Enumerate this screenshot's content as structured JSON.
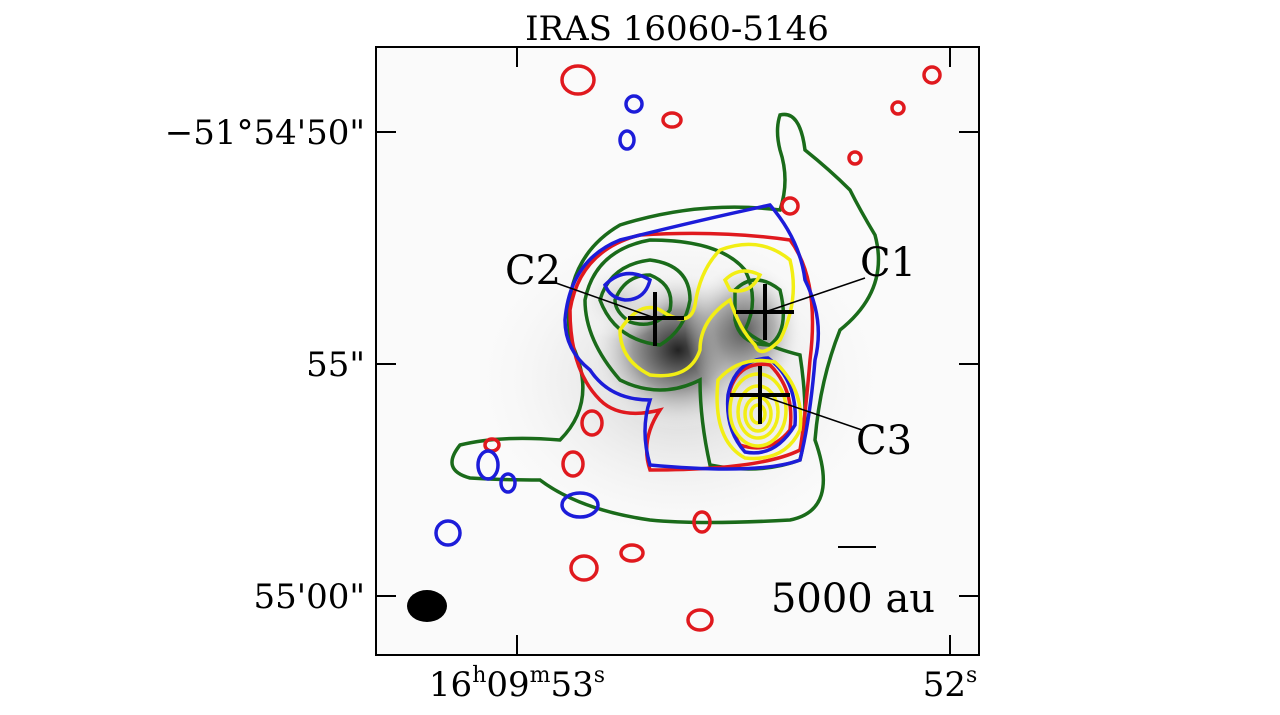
{
  "title": "IRAS 16060-5146",
  "y_axis": {
    "ticks": [
      "−51°54'50\"",
      "55\"",
      "55'00\""
    ]
  },
  "x_axis": {
    "ticks": [
      {
        "parts": [
          "16",
          "h",
          "09",
          "m",
          "53",
          "s"
        ]
      },
      {
        "parts": [
          "52",
          "s"
        ]
      }
    ]
  },
  "sources": [
    "C1",
    "C2",
    "C3"
  ],
  "scale_bar": "5000 au"
}
